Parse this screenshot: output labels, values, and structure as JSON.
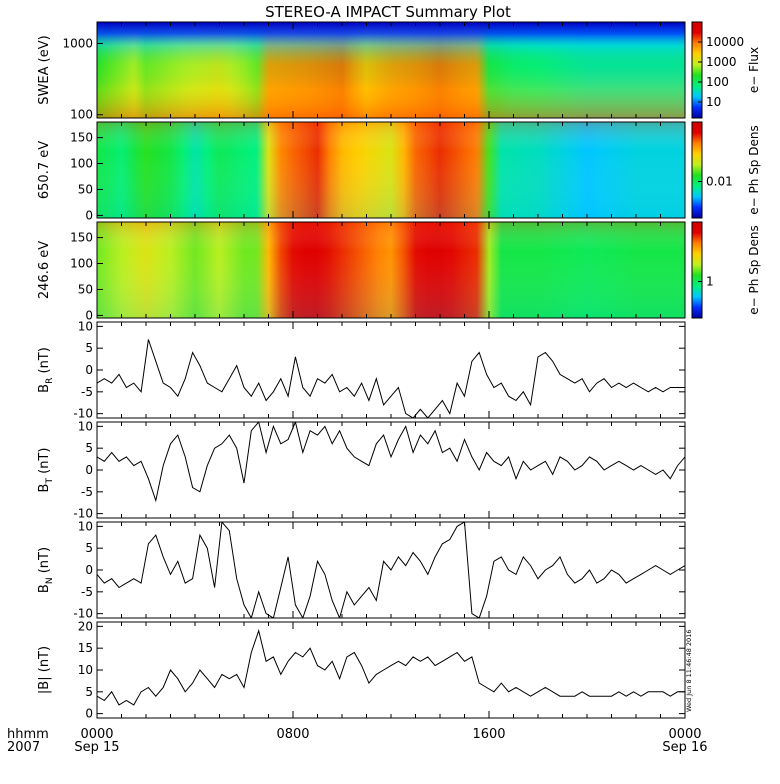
{
  "title": "STEREO-A IMPACT Summary Plot",
  "timestamp": "Wed Jun 8 11:46:48 2016",
  "time_axis": {
    "corner_labels": [
      "hhmm",
      "2007"
    ],
    "ticks": [
      {
        "hour": 0,
        "lines": [
          "0000",
          "Sep 15"
        ]
      },
      {
        "hour": 8,
        "lines": [
          "0800",
          ""
        ]
      },
      {
        "hour": 16,
        "lines": [
          "1600",
          ""
        ]
      },
      {
        "hour": 24,
        "lines": [
          "0000",
          "Sep 16"
        ]
      }
    ],
    "range_hours": [
      0,
      24
    ]
  },
  "colors": {
    "spectral_scale": [
      "#0000a0",
      "#0030ff",
      "#00c8ff",
      "#00f080",
      "#20e020",
      "#c0f020",
      "#ffd000",
      "#ff8000",
      "#e00000",
      "#d00000"
    ],
    "line": "#000000",
    "frame": "#000000"
  },
  "chart_data": [
    {
      "type": "heatmap",
      "ylabel": "SWEA (eV)",
      "ytick_labels": [
        "1000",
        "100"
      ],
      "yscale": "log",
      "ylim": [
        90,
        2000
      ],
      "colorbar": {
        "label": "e− Flux",
        "tick_labels": [
          "10000",
          "1000",
          "100",
          "10"
        ]
      },
      "time_profile": {
        "hours": [
          0,
          1.5,
          2,
          5,
          6.5,
          7,
          10,
          11,
          12,
          14,
          15.8,
          16,
          17,
          20,
          22,
          24
        ],
        "level": [
          0.45,
          0.55,
          0.5,
          0.6,
          0.5,
          0.75,
          0.8,
          0.7,
          0.75,
          0.8,
          0.75,
          0.4,
          0.35,
          0.3,
          0.3,
          0.3
        ]
      }
    },
    {
      "type": "heatmap",
      "ylabel": "650.7 eV",
      "ytick_labels": [
        "150",
        "100",
        "50",
        "0"
      ],
      "ylim": [
        -5,
        180
      ],
      "colorbar": {
        "label": "e− Ph Sp Dens",
        "tick_labels": [
          "0.01"
        ]
      },
      "time_profile": {
        "hours": [
          0,
          1,
          2,
          3,
          4,
          5,
          6,
          6.6,
          7.2,
          8,
          9,
          10,
          11,
          12,
          13,
          14,
          15.5,
          15.9,
          16.2,
          18,
          20,
          22,
          24
        ],
        "level": [
          0.4,
          0.35,
          0.45,
          0.4,
          0.3,
          0.38,
          0.35,
          0.33,
          0.75,
          0.8,
          0.85,
          0.7,
          0.65,
          0.6,
          0.8,
          0.85,
          0.78,
          0.55,
          0.3,
          0.28,
          0.22,
          0.25,
          0.25
        ]
      }
    },
    {
      "type": "heatmap",
      "ylabel": "246.6 eV",
      "ytick_labels": [
        "150",
        "100",
        "50",
        "0"
      ],
      "ylim": [
        -5,
        180
      ],
      "colorbar": {
        "label": "e− Ph Sp Dens",
        "tick_labels": [
          "1"
        ]
      },
      "time_profile": {
        "hours": [
          0,
          1,
          2,
          3,
          4,
          5,
          6,
          6.6,
          7.2,
          8,
          9,
          10,
          11,
          12,
          13,
          14,
          15.5,
          15.9,
          16.2,
          18,
          20,
          22,
          24
        ],
        "level": [
          0.5,
          0.55,
          0.6,
          0.55,
          0.5,
          0.55,
          0.5,
          0.5,
          0.8,
          0.88,
          0.9,
          0.85,
          0.8,
          0.75,
          0.88,
          0.9,
          0.85,
          0.6,
          0.4,
          0.4,
          0.38,
          0.4,
          0.4
        ]
      }
    },
    {
      "type": "line",
      "ylabel_main": "B",
      "ylabel_sub": "R",
      "ylabel_unit": " (nT)",
      "ytick_labels": [
        "10",
        "5",
        "0",
        "-5",
        "-10"
      ],
      "ylim": [
        -11,
        11
      ],
      "x": [
        0,
        0.3,
        0.6,
        0.9,
        1.2,
        1.5,
        1.8,
        2.1,
        2.4,
        2.7,
        3.0,
        3.3,
        3.6,
        3.9,
        4.2,
        4.5,
        4.8,
        5.1,
        5.4,
        5.7,
        6.0,
        6.3,
        6.6,
        6.9,
        7.2,
        7.5,
        7.8,
        8.1,
        8.4,
        8.7,
        9.0,
        9.3,
        9.6,
        9.9,
        10.2,
        10.5,
        10.8,
        11.1,
        11.4,
        11.7,
        12.0,
        12.3,
        12.6,
        12.9,
        13.2,
        13.5,
        13.8,
        14.1,
        14.4,
        14.7,
        15.0,
        15.3,
        15.6,
        15.9,
        16.2,
        16.5,
        16.8,
        17.1,
        17.4,
        17.7,
        18.0,
        18.3,
        18.6,
        18.9,
        19.2,
        19.5,
        19.8,
        20.1,
        20.4,
        20.7,
        21.0,
        21.3,
        21.6,
        21.9,
        22.2,
        22.5,
        22.8,
        23.1,
        23.4,
        23.7,
        24.0
      ],
      "y": [
        -3,
        -2,
        -3,
        -1,
        -4,
        -3,
        -5,
        7,
        2,
        -3,
        -4,
        -6,
        -2,
        4,
        1,
        -3,
        -4,
        -5,
        -2,
        1,
        -4,
        -6,
        -3,
        -7,
        -5,
        -2,
        -6,
        3,
        -4,
        -6,
        -2,
        -3,
        -1,
        -5,
        -4,
        -6,
        -3,
        -7,
        -2,
        -8,
        -6,
        -4,
        -10,
        -12,
        -9,
        -12,
        -9,
        -7,
        -10,
        -3,
        -6,
        2,
        4,
        -1,
        -4,
        -3,
        -6,
        -7,
        -5,
        -8,
        3,
        4,
        2,
        -1,
        -2,
        -3,
        -2,
        -5,
        -3,
        -2,
        -4,
        -3,
        -4,
        -3,
        -4,
        -5,
        -4,
        -5,
        -4,
        -4,
        -4
      ]
    },
    {
      "type": "line",
      "ylabel_main": "B",
      "ylabel_sub": "T",
      "ylabel_unit": " (nT)",
      "ytick_labels": [
        "10",
        "5",
        "0",
        "-5",
        "-10"
      ],
      "ylim": [
        -11,
        11
      ],
      "x": [
        0,
        0.3,
        0.6,
        0.9,
        1.2,
        1.5,
        1.8,
        2.1,
        2.4,
        2.7,
        3.0,
        3.3,
        3.6,
        3.9,
        4.2,
        4.5,
        4.8,
        5.1,
        5.4,
        5.7,
        6.0,
        6.3,
        6.6,
        6.9,
        7.2,
        7.5,
        7.8,
        8.1,
        8.4,
        8.7,
        9.0,
        9.3,
        9.6,
        9.9,
        10.2,
        10.5,
        10.8,
        11.1,
        11.4,
        11.7,
        12.0,
        12.3,
        12.6,
        12.9,
        13.2,
        13.5,
        13.8,
        14.1,
        14.4,
        14.7,
        15.0,
        15.3,
        15.6,
        15.9,
        16.2,
        16.5,
        16.8,
        17.1,
        17.4,
        17.7,
        18.0,
        18.3,
        18.6,
        18.9,
        19.2,
        19.5,
        19.8,
        20.1,
        20.4,
        20.7,
        21.0,
        21.3,
        21.6,
        21.9,
        22.2,
        22.5,
        22.8,
        23.1,
        23.4,
        23.7,
        24.0
      ],
      "y": [
        3,
        2,
        4,
        2,
        3,
        1,
        2,
        -2,
        -7,
        1,
        6,
        8,
        3,
        -4,
        -5,
        1,
        5,
        6,
        8,
        5,
        -3,
        9,
        12,
        4,
        10,
        6,
        7,
        11,
        4,
        9,
        8,
        10,
        6,
        9,
        5,
        3,
        2,
        1,
        6,
        8,
        3,
        7,
        10,
        4,
        8,
        6,
        9,
        4,
        5,
        2,
        7,
        3,
        0,
        4,
        2,
        1,
        3,
        -2,
        2,
        0,
        1,
        2,
        -1,
        3,
        2,
        0,
        1,
        3,
        2,
        0,
        1,
        2,
        1,
        0,
        1,
        0,
        -1,
        0,
        -2,
        1,
        3
      ]
    },
    {
      "type": "line",
      "ylabel_main": "B",
      "ylabel_sub": "N",
      "ylabel_unit": " (nT)",
      "ytick_labels": [
        "10",
        "5",
        "0",
        "-5",
        "-10"
      ],
      "ylim": [
        -11,
        11
      ],
      "x": [
        0,
        0.3,
        0.6,
        0.9,
        1.2,
        1.5,
        1.8,
        2.1,
        2.4,
        2.7,
        3.0,
        3.3,
        3.6,
        3.9,
        4.2,
        4.5,
        4.8,
        5.1,
        5.4,
        5.7,
        6.0,
        6.3,
        6.6,
        6.9,
        7.2,
        7.5,
        7.8,
        8.1,
        8.4,
        8.7,
        9.0,
        9.3,
        9.6,
        9.9,
        10.2,
        10.5,
        10.8,
        11.1,
        11.4,
        11.7,
        12.0,
        12.3,
        12.6,
        12.9,
        13.2,
        13.5,
        13.8,
        14.1,
        14.4,
        14.7,
        15.0,
        15.3,
        15.6,
        15.9,
        16.2,
        16.5,
        16.8,
        17.1,
        17.4,
        17.7,
        18.0,
        18.3,
        18.6,
        18.9,
        19.2,
        19.5,
        19.8,
        20.1,
        20.4,
        20.7,
        21.0,
        21.3,
        21.6,
        21.9,
        22.2,
        22.5,
        22.8,
        23.1,
        23.4,
        23.7,
        24.0
      ],
      "y": [
        -1,
        -3,
        -2,
        -4,
        -3,
        -2,
        -3,
        6,
        8,
        3,
        -1,
        2,
        -3,
        -2,
        8,
        5,
        -4,
        12,
        9,
        -2,
        -8,
        -12,
        -5,
        -10,
        -11,
        -4,
        3,
        -8,
        -12,
        -6,
        2,
        -1,
        -7,
        -11,
        -5,
        -8,
        -6,
        -4,
        -7,
        2,
        0,
        3,
        1,
        4,
        2,
        -1,
        3,
        6,
        7,
        10,
        12,
        -10,
        -12,
        -6,
        2,
        3,
        0,
        -1,
        3,
        1,
        -2,
        0,
        1,
        3,
        -1,
        -3,
        -2,
        0,
        -3,
        -2,
        0,
        -1,
        -3,
        -2,
        -1,
        0,
        1,
        0,
        -1,
        0,
        1
      ]
    },
    {
      "type": "line",
      "ylabel_main": "|B|",
      "ylabel_sub": "",
      "ylabel_unit": " (nT)",
      "ytick_labels": [
        "20",
        "15",
        "10",
        "5",
        "0"
      ],
      "ylim": [
        -1,
        21
      ],
      "x": [
        0,
        0.3,
        0.6,
        0.9,
        1.2,
        1.5,
        1.8,
        2.1,
        2.4,
        2.7,
        3.0,
        3.3,
        3.6,
        3.9,
        4.2,
        4.5,
        4.8,
        5.1,
        5.4,
        5.7,
        6.0,
        6.3,
        6.6,
        6.9,
        7.2,
        7.5,
        7.8,
        8.1,
        8.4,
        8.7,
        9.0,
        9.3,
        9.6,
        9.9,
        10.2,
        10.5,
        10.8,
        11.1,
        11.4,
        11.7,
        12.0,
        12.3,
        12.6,
        12.9,
        13.2,
        13.5,
        13.8,
        14.1,
        14.4,
        14.7,
        15.0,
        15.3,
        15.6,
        15.9,
        16.2,
        16.5,
        16.8,
        17.1,
        17.4,
        17.7,
        18.0,
        18.3,
        18.6,
        18.9,
        19.2,
        19.5,
        19.8,
        20.1,
        20.4,
        20.7,
        21.0,
        21.3,
        21.6,
        21.9,
        22.2,
        22.5,
        22.8,
        23.1,
        23.4,
        23.7,
        24.0
      ],
      "y": [
        4,
        3,
        5,
        2,
        3,
        2,
        5,
        6,
        4,
        6,
        10,
        8,
        5,
        7,
        10,
        8,
        6,
        9,
        8,
        9,
        6,
        14,
        19,
        12,
        13,
        9,
        12,
        14,
        13,
        15,
        11,
        10,
        12,
        8,
        13,
        14,
        11,
        7,
        9,
        10,
        11,
        12,
        11,
        13,
        12,
        13,
        11,
        12,
        13,
        14,
        12,
        13,
        7,
        6,
        5,
        7,
        5,
        6,
        5,
        4,
        5,
        6,
        5,
        4,
        4,
        4,
        5,
        4,
        4,
        4,
        4,
        5,
        4,
        5,
        4,
        5,
        5,
        5,
        4,
        5,
        5
      ]
    }
  ]
}
